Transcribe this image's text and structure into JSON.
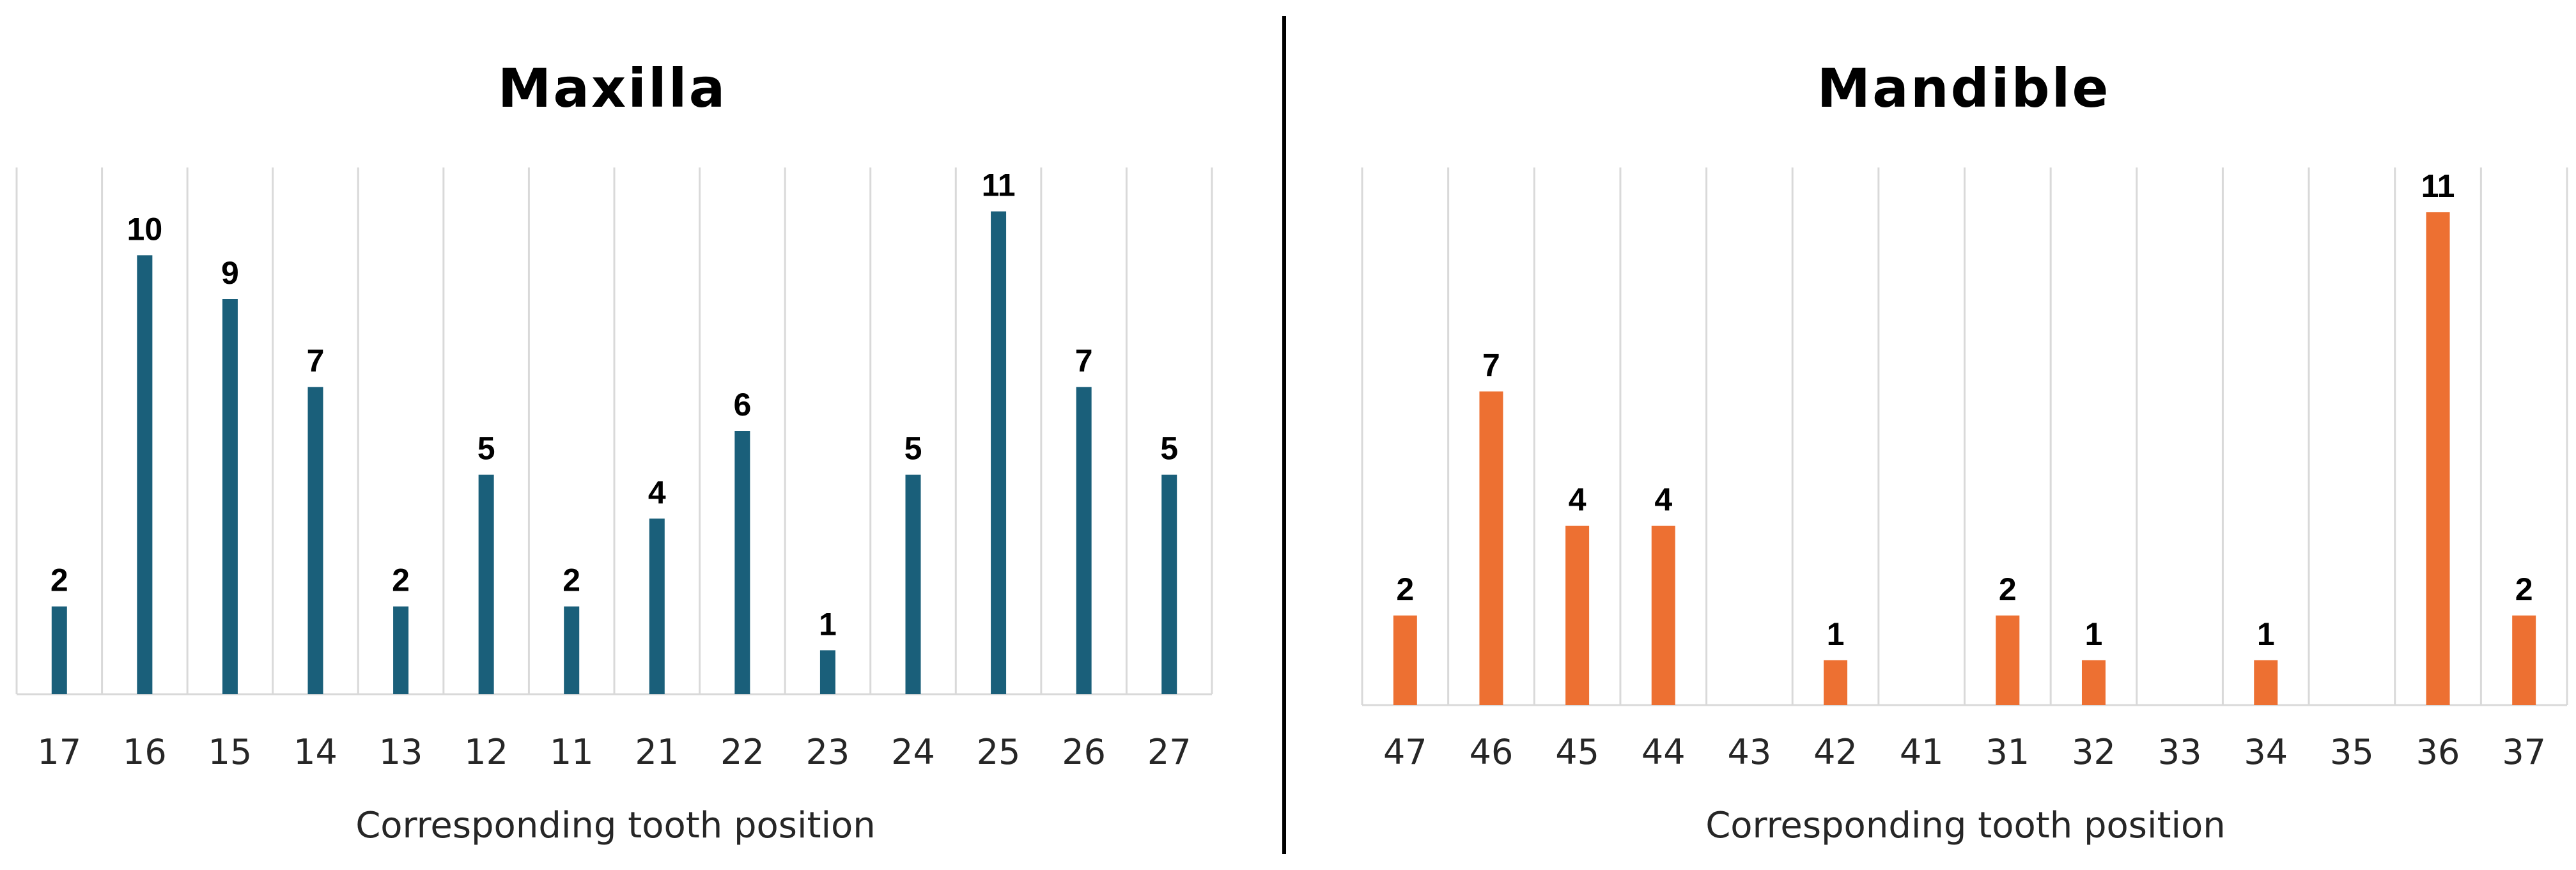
{
  "chart_data": [
    {
      "type": "bar",
      "title": "Maxilla",
      "xlabel": "Corresponding tooth position",
      "ylabel": "",
      "categories": [
        "17",
        "16",
        "15",
        "14",
        "13",
        "12",
        "11",
        "21",
        "22",
        "23",
        "24",
        "25",
        "26",
        "27"
      ],
      "values": [
        2,
        10,
        9,
        7,
        2,
        5,
        2,
        4,
        6,
        1,
        5,
        11,
        7,
        5
      ],
      "data_labels": [
        "2",
        "10",
        "9",
        "7",
        "2",
        "5",
        "2",
        "4",
        "6",
        "1",
        "5",
        "11",
        "7",
        "5"
      ],
      "ylim": [
        0,
        12
      ],
      "color": "#1a5f7a",
      "grid": "vertical",
      "legend": "none"
    },
    {
      "type": "bar",
      "title": "Mandible",
      "xlabel": "Corresponding tooth position",
      "ylabel": "",
      "categories": [
        "47",
        "46",
        "45",
        "44",
        "43",
        "42",
        "41",
        "31",
        "32",
        "33",
        "34",
        "35",
        "36",
        "37"
      ],
      "values": [
        2,
        7,
        4,
        4,
        0,
        1,
        0,
        2,
        1,
        0,
        1,
        0,
        11,
        2
      ],
      "data_labels": [
        "2",
        "7",
        "4",
        "4",
        "",
        "1",
        "",
        "2",
        "1",
        "",
        "1",
        "",
        "11",
        "2"
      ],
      "ylim": [
        0,
        12
      ],
      "color": "#ed7032",
      "grid": "vertical",
      "legend": "none"
    }
  ]
}
